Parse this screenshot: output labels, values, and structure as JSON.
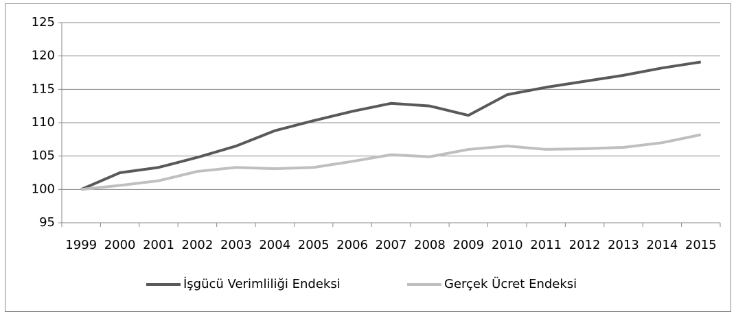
{
  "chart_data": {
    "type": "line",
    "categories": [
      "1999",
      "2000",
      "2001",
      "2002",
      "2003",
      "2004",
      "2005",
      "2006",
      "2007",
      "2008",
      "2009",
      "2010",
      "2011",
      "2012",
      "2013",
      "2014",
      "2015"
    ],
    "series": [
      {
        "name": "İşgücü Verimliliği Endeksi",
        "color": "#595959",
        "values": [
          100,
          102.5,
          103.3,
          104.8,
          106.5,
          108.8,
          110.3,
          111.7,
          112.9,
          112.5,
          111.1,
          114.2,
          115.3,
          116.2,
          117.1,
          118.2,
          119.1
        ]
      },
      {
        "name": "Gerçek Ücret Endeksi",
        "color": "#bfbfbf",
        "values": [
          100,
          100.6,
          101.3,
          102.7,
          103.3,
          103.1,
          103.3,
          104.2,
          105.2,
          104.9,
          106.0,
          106.5,
          106.0,
          106.1,
          106.3,
          107.0,
          108.2
        ]
      }
    ],
    "ylim": [
      95,
      125
    ],
    "yticks": [
      95,
      100,
      105,
      110,
      115,
      120,
      125
    ],
    "grid": true,
    "legend": "bottom"
  }
}
